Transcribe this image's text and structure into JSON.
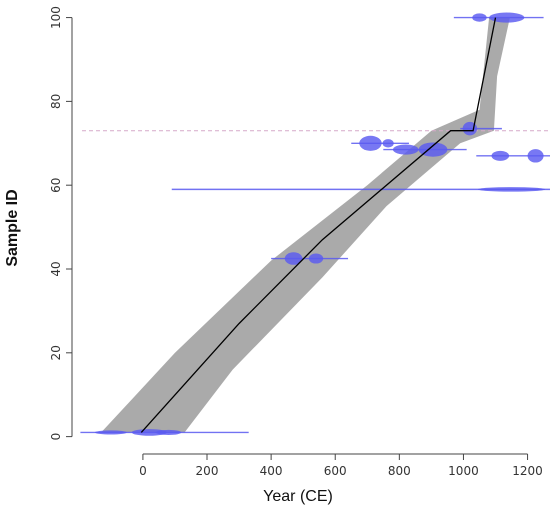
{
  "chart_data": {
    "type": "age-depth-model",
    "xlabel": "Year (CE)",
    "ylabel": "Sample ID",
    "xlim": [
      -190,
      1270
    ],
    "ylim": [
      -2,
      103
    ],
    "x_ticks": [
      0,
      200,
      400,
      600,
      800,
      1000,
      1200
    ],
    "y_ticks": [
      0,
      20,
      40,
      60,
      80,
      100
    ],
    "colors": {
      "envelope": "#aaaaaa",
      "median_line": "#000000",
      "dates": "#5a5af0",
      "reference_line": "#d6a9c9"
    },
    "reference_line_y": 73,
    "median_line": [
      {
        "x": -5,
        "y": 1
      },
      {
        "x": 300,
        "y": 27
      },
      {
        "x": 560,
        "y": 47
      },
      {
        "x": 960,
        "y": 73
      },
      {
        "x": 1030,
        "y": 73
      },
      {
        "x": 1100,
        "y": 100
      }
    ],
    "envelope": {
      "upper": [
        {
          "x": -130,
          "y": 1
        },
        {
          "x": 100,
          "y": 20
        },
        {
          "x": 400,
          "y": 42
        },
        {
          "x": 700,
          "y": 60
        },
        {
          "x": 900,
          "y": 73
        },
        {
          "x": 1050,
          "y": 78
        },
        {
          "x": 1080,
          "y": 100
        }
      ],
      "lower": [
        {
          "x": 1145,
          "y": 100
        },
        {
          "x": 1105,
          "y": 86
        },
        {
          "x": 1095,
          "y": 73
        },
        {
          "x": 990,
          "y": 70
        },
        {
          "x": 760,
          "y": 55
        },
        {
          "x": 560,
          "y": 38
        },
        {
          "x": 280,
          "y": 16
        },
        {
          "x": 130,
          "y": 1
        }
      ]
    },
    "dated_samples": [
      {
        "y": 1,
        "x_min": -195,
        "x_max": 330,
        "peaks": [
          {
            "x": -100,
            "w": 100,
            "h": 0.5
          },
          {
            "x": 20,
            "w": 110,
            "h": 0.8
          },
          {
            "x": 80,
            "w": 80,
            "h": 0.6
          }
        ]
      },
      {
        "y": 42.5,
        "x_min": 400,
        "x_max": 640,
        "peaks": [
          {
            "x": 470,
            "w": 55,
            "h": 1.5
          },
          {
            "x": 540,
            "w": 45,
            "h": 1.2
          }
        ]
      },
      {
        "y": 59,
        "x_min": 90,
        "x_max": 1270,
        "peaks": [
          {
            "x": 1150,
            "w": 210,
            "h": 0.55
          }
        ]
      },
      {
        "y": 67,
        "x_min": 1040,
        "x_max": 1270,
        "peaks": [
          {
            "x": 1115,
            "w": 55,
            "h": 1.2
          },
          {
            "x": 1225,
            "w": 50,
            "h": 1.6
          }
        ]
      },
      {
        "y": 68.5,
        "x_min": 750,
        "x_max": 1010,
        "peaks": [
          {
            "x": 820,
            "w": 80,
            "h": 1.2
          },
          {
            "x": 905,
            "w": 90,
            "h": 1.7
          }
        ]
      },
      {
        "y": 70,
        "x_min": 650,
        "x_max": 830,
        "peaks": [
          {
            "x": 710,
            "w": 70,
            "h": 1.8
          },
          {
            "x": 765,
            "w": 35,
            "h": 1.0
          }
        ]
      },
      {
        "y": 73.5,
        "x_min": 990,
        "x_max": 1120,
        "peaks": [
          {
            "x": 1020,
            "w": 45,
            "h": 1.6
          }
        ]
      },
      {
        "y": 100,
        "x_min": 970,
        "x_max": 1250,
        "peaks": [
          {
            "x": 1050,
            "w": 45,
            "h": 1.0
          },
          {
            "x": 1135,
            "w": 110,
            "h": 1.2
          }
        ]
      }
    ]
  }
}
